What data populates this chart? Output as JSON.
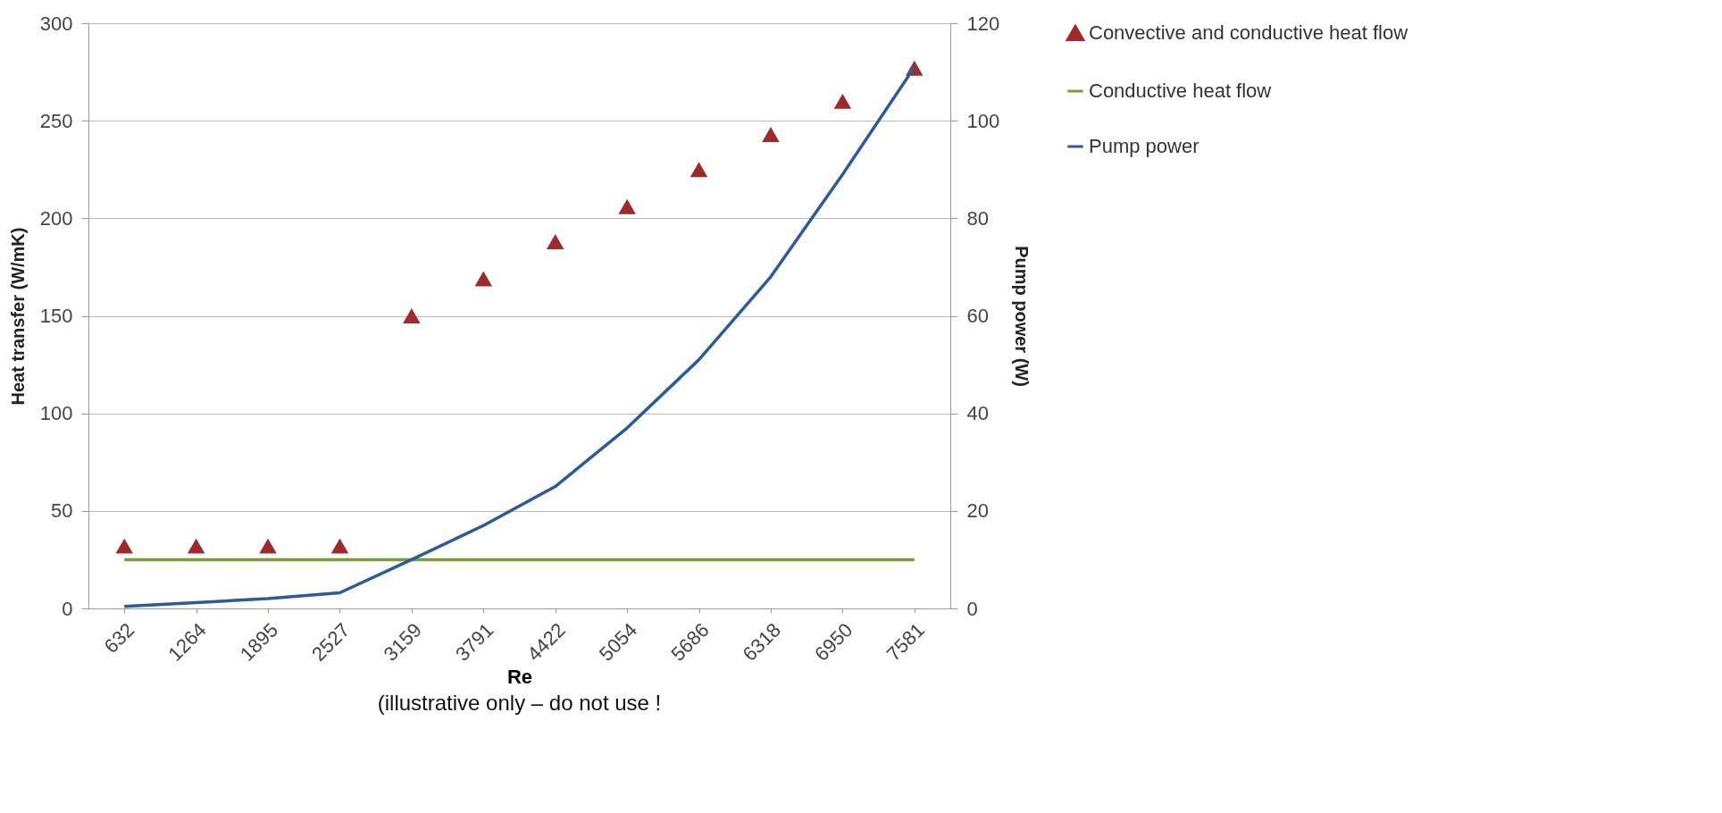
{
  "chart_data": {
    "type": "line",
    "xlabel": "Re",
    "ylabel": "Heat transfer (W/mK)",
    "y2label": "Pump power (W)",
    "categories": [
      "632",
      "1264",
      "1895",
      "2527",
      "3159",
      "3791",
      "4422",
      "5054",
      "5686",
      "6318",
      "6950",
      "7581"
    ],
    "ylim": [
      0,
      300
    ],
    "yticks": [
      0,
      50,
      100,
      150,
      200,
      250,
      300
    ],
    "y2lim": [
      0,
      120
    ],
    "y2ticks": [
      0,
      20,
      40,
      60,
      80,
      100,
      120
    ],
    "grid": "y",
    "legend": "right",
    "annotations": [
      "(illustrative only – do not use !"
    ],
    "series": [
      {
        "name": "Convective and conductive heat flow",
        "type": "scatter",
        "marker": "triangle",
        "color": "#9e2a2b",
        "values": [
          32,
          32,
          32,
          32,
          150,
          169,
          188,
          206,
          225,
          243,
          260,
          277
        ]
      },
      {
        "name": "Conductive heat flow",
        "color": "#77a033",
        "values": [
          25,
          25,
          25,
          25,
          25,
          25,
          25,
          25,
          25,
          25,
          25,
          25
        ]
      },
      {
        "name": "Pump power",
        "axis": "y2",
        "color": "#2a5b9c",
        "values": [
          0.4,
          1.2,
          2,
          3.2,
          10,
          17,
          25,
          37,
          51,
          68,
          89,
          111
        ]
      }
    ]
  }
}
